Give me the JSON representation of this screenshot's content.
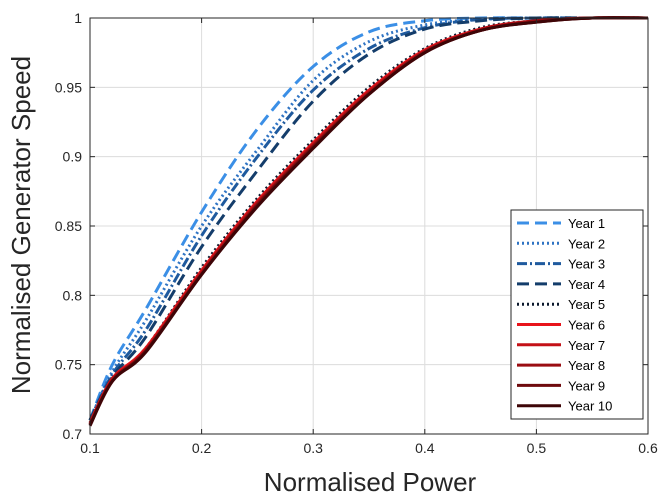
{
  "chart_data": {
    "type": "line",
    "xlabel": "Normalised Power",
    "ylabel": "Normalised Generator Speed",
    "xlim": [
      0.1,
      0.6
    ],
    "ylim": [
      0.7,
      1.0
    ],
    "xticks": [
      0.1,
      0.2,
      0.3,
      0.4,
      0.5,
      0.6
    ],
    "yticks": [
      0.7,
      0.75,
      0.8,
      0.85,
      0.9,
      0.95,
      1.0
    ],
    "xtick_labels": [
      "0.1",
      "0.2",
      "0.3",
      "0.4",
      "0.5",
      "0.6"
    ],
    "ytick_labels": [
      "0.7",
      "0.75",
      "0.8",
      "0.85",
      "0.9",
      "0.95",
      "1"
    ],
    "grid": true,
    "legend_position": "bottom-right",
    "series": [
      {
        "name": "Year 1",
        "color": "#3b8fe6",
        "dash": "12,6",
        "x": [
          0.1,
          0.12,
          0.15,
          0.2,
          0.25,
          0.3,
          0.35,
          0.4,
          0.45,
          0.5,
          0.55,
          0.6
        ],
        "y": [
          0.71,
          0.75,
          0.79,
          0.86,
          0.92,
          0.965,
          0.99,
          0.998,
          1.0,
          1.0,
          1.0,
          1.0
        ]
      },
      {
        "name": "Year 2",
        "color": "#2f74c4",
        "dash": "2,3",
        "x": [
          0.1,
          0.12,
          0.15,
          0.2,
          0.25,
          0.3,
          0.35,
          0.4,
          0.45,
          0.5,
          0.55,
          0.6
        ],
        "y": [
          0.71,
          0.745,
          0.782,
          0.85,
          0.905,
          0.955,
          0.983,
          0.995,
          0.999,
          1.0,
          1.0,
          1.0
        ]
      },
      {
        "name": "Year 3",
        "color": "#1f5a9e",
        "dash": "10,3,2,3",
        "x": [
          0.1,
          0.12,
          0.15,
          0.2,
          0.25,
          0.3,
          0.35,
          0.4,
          0.45,
          0.5,
          0.55,
          0.6
        ],
        "y": [
          0.71,
          0.743,
          0.775,
          0.843,
          0.9,
          0.948,
          0.978,
          0.993,
          0.999,
          1.0,
          1.0,
          1.0
        ]
      },
      {
        "name": "Year 4",
        "color": "#143d6b",
        "dash": "12,6",
        "x": [
          0.1,
          0.12,
          0.15,
          0.2,
          0.25,
          0.3,
          0.35,
          0.4,
          0.45,
          0.5,
          0.55,
          0.6
        ],
        "y": [
          0.71,
          0.741,
          0.77,
          0.835,
          0.89,
          0.94,
          0.974,
          0.992,
          0.998,
          1.0,
          1.0,
          1.0
        ]
      },
      {
        "name": "Year 5",
        "color": "#0d1a2e",
        "dash": "2,3",
        "x": [
          0.1,
          0.12,
          0.15,
          0.2,
          0.25,
          0.3,
          0.35,
          0.4,
          0.45,
          0.5,
          0.55,
          0.6
        ],
        "y": [
          0.708,
          0.74,
          0.762,
          0.82,
          0.87,
          0.912,
          0.95,
          0.978,
          0.993,
          0.998,
          1.0,
          1.0
        ]
      },
      {
        "name": "Year 6",
        "color": "#e8141b",
        "dash": "",
        "x": [
          0.1,
          0.12,
          0.15,
          0.2,
          0.25,
          0.3,
          0.35,
          0.4,
          0.45,
          0.5,
          0.55,
          0.6
        ],
        "y": [
          0.708,
          0.74,
          0.762,
          0.818,
          0.868,
          0.91,
          0.948,
          0.977,
          0.992,
          0.998,
          1.0,
          1.0
        ]
      },
      {
        "name": "Year 7",
        "color": "#c41117",
        "dash": "",
        "x": [
          0.1,
          0.12,
          0.15,
          0.2,
          0.25,
          0.3,
          0.35,
          0.4,
          0.45,
          0.5,
          0.55,
          0.6
        ],
        "y": [
          0.707,
          0.739,
          0.761,
          0.817,
          0.867,
          0.909,
          0.947,
          0.976,
          0.992,
          0.998,
          1.0,
          1.0
        ]
      },
      {
        "name": "Year 8",
        "color": "#9a0d12",
        "dash": "",
        "x": [
          0.1,
          0.12,
          0.15,
          0.2,
          0.25,
          0.3,
          0.35,
          0.4,
          0.45,
          0.5,
          0.55,
          0.6
        ],
        "y": [
          0.707,
          0.739,
          0.76,
          0.816,
          0.866,
          0.908,
          0.946,
          0.976,
          0.991,
          0.998,
          1.0,
          1.0
        ]
      },
      {
        "name": "Year 9",
        "color": "#6e0a0d",
        "dash": "",
        "x": [
          0.1,
          0.12,
          0.15,
          0.2,
          0.25,
          0.3,
          0.35,
          0.4,
          0.45,
          0.5,
          0.55,
          0.6
        ],
        "y": [
          0.706,
          0.738,
          0.76,
          0.815,
          0.865,
          0.907,
          0.945,
          0.975,
          0.991,
          0.997,
          1.0,
          1.0
        ]
      },
      {
        "name": "Year 10",
        "color": "#3d0507",
        "dash": "",
        "x": [
          0.1,
          0.12,
          0.15,
          0.2,
          0.25,
          0.3,
          0.35,
          0.4,
          0.45,
          0.5,
          0.55,
          0.6
        ],
        "y": [
          0.706,
          0.738,
          0.759,
          0.815,
          0.864,
          0.906,
          0.945,
          0.975,
          0.991,
          0.997,
          1.0,
          1.0
        ]
      }
    ]
  }
}
